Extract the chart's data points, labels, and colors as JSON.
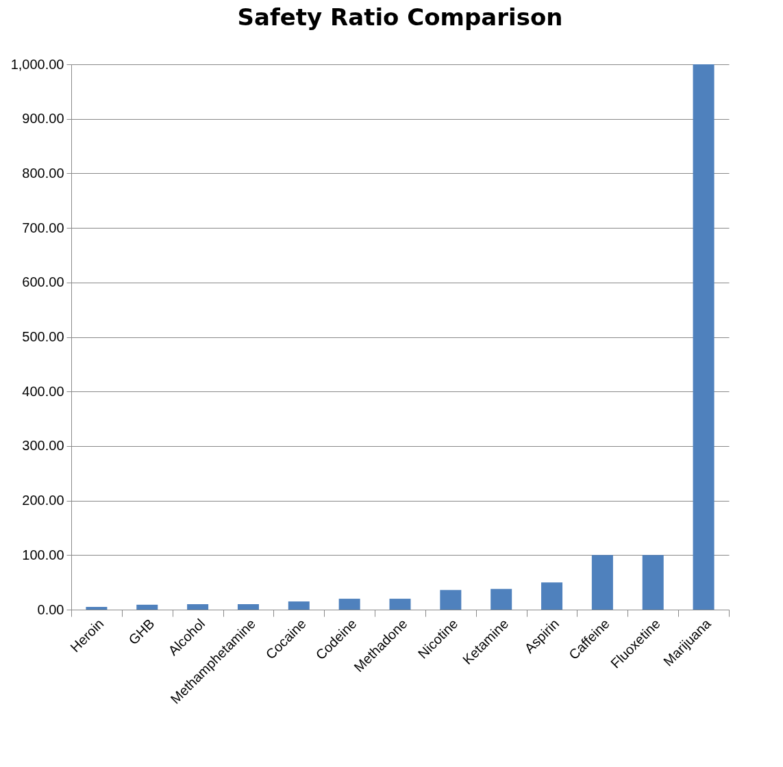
{
  "chart_data": {
    "type": "bar",
    "title": "Safety Ratio Comparison",
    "categories": [
      "Heroin",
      "GHB",
      "Alcohol",
      "Methamphetamine",
      "Cocaine",
      "Codeine",
      "Methadone",
      "Nicotine",
      "Ketamine",
      "Aspirin",
      "Caffeine",
      "Fluoxetine",
      "Marijuana"
    ],
    "values": [
      5,
      9,
      10,
      10,
      15,
      20,
      20,
      36,
      38,
      50,
      100,
      100,
      1000
    ],
    "color": "#4f81bd",
    "ylim": [
      0,
      1000
    ],
    "yticks": [
      {
        "value": 0,
        "label": "0.00"
      },
      {
        "value": 100,
        "label": "100.00"
      },
      {
        "value": 200,
        "label": "200.00"
      },
      {
        "value": 300,
        "label": "300.00"
      },
      {
        "value": 400,
        "label": "400.00"
      },
      {
        "value": 500,
        "label": "500.00"
      },
      {
        "value": 600,
        "label": "600.00"
      },
      {
        "value": 700,
        "label": "700.00"
      },
      {
        "value": 800,
        "label": "800.00"
      },
      {
        "value": 900,
        "label": "900.00"
      },
      {
        "value": 1000,
        "label": "1,000.00"
      }
    ],
    "grid": "y",
    "legend": false
  }
}
